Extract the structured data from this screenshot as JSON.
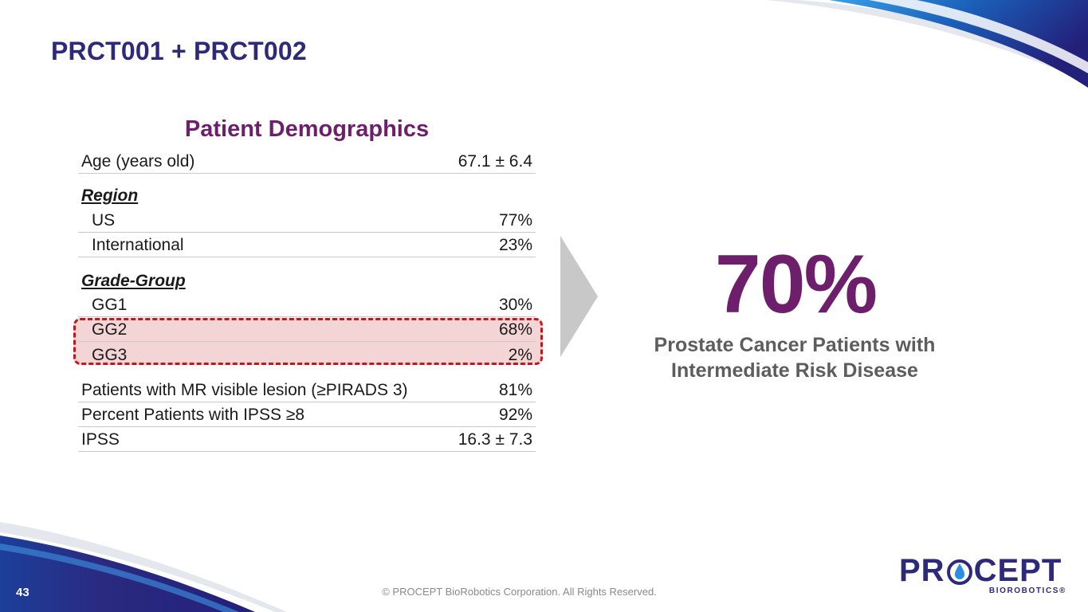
{
  "slide": {
    "title": "PRCT001 + PRCT002",
    "page_number": "43"
  },
  "table": {
    "title": "Patient Demographics",
    "age": {
      "label": "Age (years old)",
      "value": "67.1 ± 6.4"
    },
    "region": {
      "heading": "Region",
      "us": {
        "label": "US",
        "value": "77%"
      },
      "international": {
        "label": "International",
        "value": "23%"
      }
    },
    "grade_group": {
      "heading": "Grade-Group",
      "gg1": {
        "label": "GG1",
        "value": "30%"
      },
      "gg2": {
        "label": "GG2",
        "value": "68%"
      },
      "gg3": {
        "label": "GG3",
        "value": "2%"
      }
    },
    "mr_lesion": {
      "label": "Patients with MR visible lesion (≥PIRADS 3)",
      "value": "81%"
    },
    "ipss_pct": {
      "label": "Percent Patients with IPSS ≥8",
      "value": "92%"
    },
    "ipss": {
      "label": "IPSS",
      "value": "16.3 ± 7.3"
    }
  },
  "highlight": {
    "stat": "70%",
    "caption_line1": "Prostate Cancer Patients with",
    "caption_line2": "Intermediate Risk Disease"
  },
  "footer": {
    "copyright": "© PROCEPT BioRobotics Corporation. All Rights Reserved."
  },
  "logo": {
    "word_left": "PR",
    "word_right": "CEPT",
    "subtitle": "BIOROBOTICS®"
  },
  "colors": {
    "navy": "#2e2a7a",
    "purple": "#6d1f6b",
    "blue": "#1e6fc4",
    "highlight_fill": "#f4d5d6",
    "highlight_border": "#c0181f",
    "arrow": "#c8c8c8"
  },
  "icons": {
    "arrow": "chevron-right-arrow",
    "logo_mark": "water-drop-icon"
  }
}
